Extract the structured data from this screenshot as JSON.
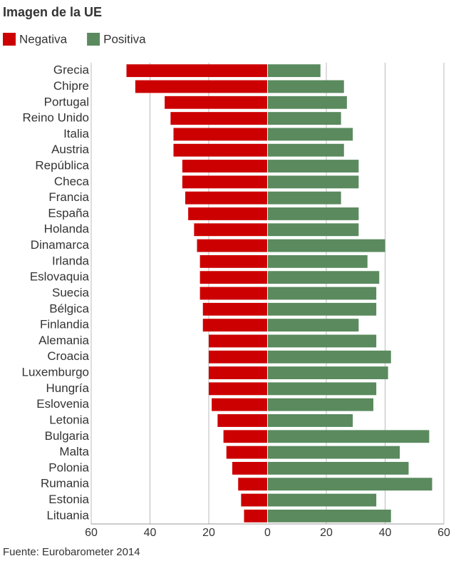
{
  "chart_data": {
    "type": "diverging-bar",
    "title": "Imagen de la UE",
    "categories": [
      "Grecia",
      "Chipre",
      "Portugal",
      "Reino Unido",
      "Italia",
      "Austria",
      "República",
      "Checa",
      "Francia",
      "España",
      "Holanda",
      "Dinamarca",
      "Irlanda",
      "Eslovaquia",
      "Suecia",
      "Bélgica",
      "Finlandia",
      "Alemania",
      "Croacia",
      "Luxemburgo",
      "Hungría",
      "Eslovenia",
      "Letonia",
      "Bulgaria",
      "Malta",
      "Polonia",
      "Rumania",
      "Estonia",
      "Lituania"
    ],
    "series": [
      {
        "name": "Negativa",
        "color": "#cc0000",
        "values": [
          -48,
          -45,
          -35,
          -33,
          -32,
          -32,
          -29,
          -29,
          -28,
          -27,
          -25,
          -24,
          -23,
          -23,
          -23,
          -22,
          -22,
          -20,
          -20,
          -20,
          -20,
          -19,
          -17,
          -15,
          -14,
          -12,
          -10,
          -9,
          -8
        ]
      },
      {
        "name": "Positiva",
        "color": "#5a8a5e",
        "values": [
          18,
          26,
          27,
          25,
          29,
          26,
          31,
          31,
          25,
          31,
          31,
          40,
          34,
          38,
          37,
          37,
          31,
          37,
          42,
          41,
          37,
          36,
          29,
          55,
          45,
          48,
          56,
          37,
          42
        ]
      }
    ],
    "xlim": [
      -60,
      60
    ],
    "xticks": [
      {
        "value": -60,
        "label": "60"
      },
      {
        "value": -40,
        "label": "40"
      },
      {
        "value": -20,
        "label": "20"
      },
      0,
      20,
      40,
      60
    ],
    "grid": true,
    "source": "Fuente: Eurobarometer 2014"
  }
}
